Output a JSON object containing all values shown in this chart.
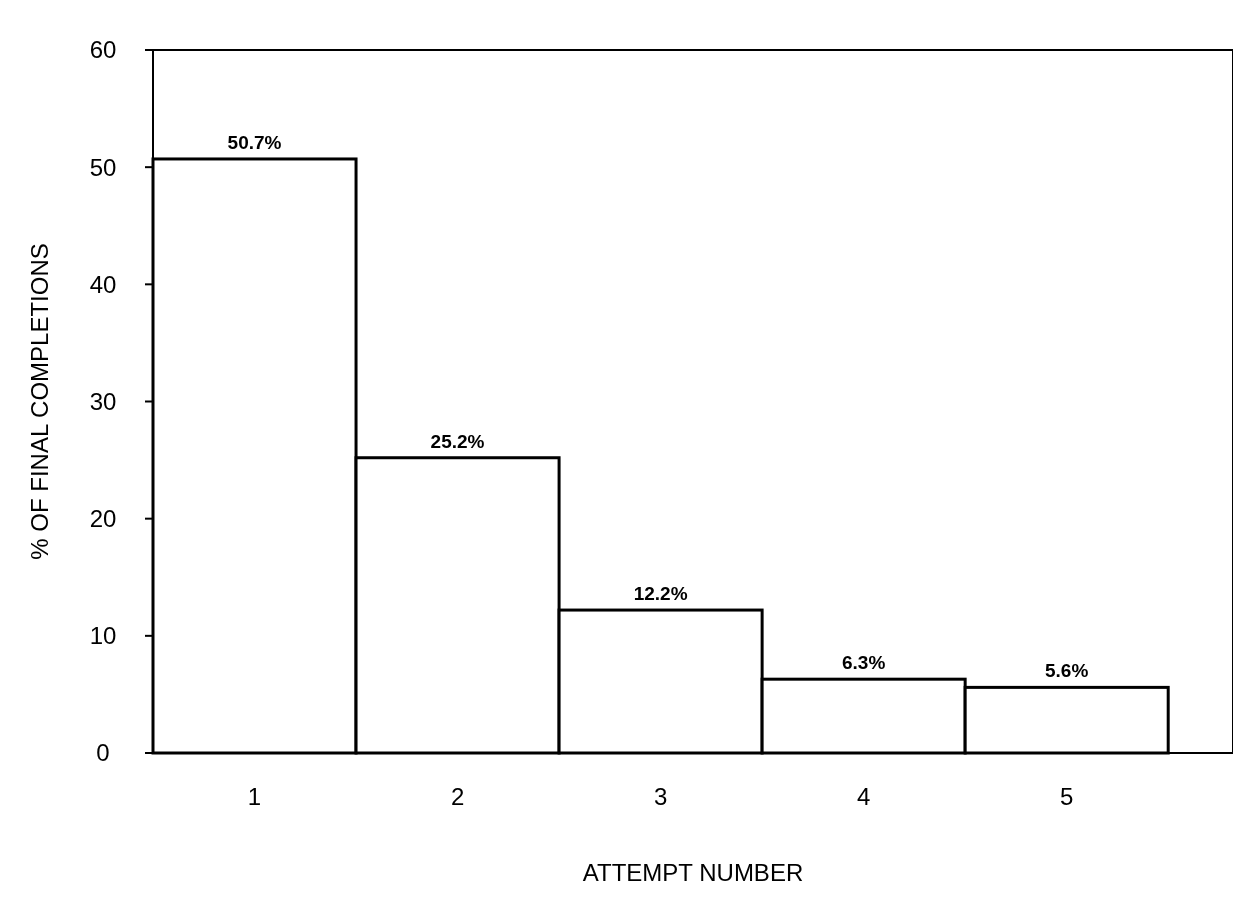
{
  "chart_data": {
    "type": "bar",
    "xlabel": "ATTEMPT NUMBER",
    "ylabel": "% OF FINAL COMPLETIONS",
    "categories": [
      "1",
      "2",
      "3",
      "4",
      "5"
    ],
    "values": [
      50.7,
      25.2,
      12.2,
      6.3,
      5.6
    ],
    "value_labels": [
      "50.7%",
      "25.2%",
      "12.2%",
      "6.3%",
      "5.6%"
    ],
    "color": "#ffffff",
    "ylim": [
      0,
      60
    ],
    "yticks": [
      0,
      10,
      20,
      30,
      40,
      50,
      60
    ],
    "grid": false
  }
}
